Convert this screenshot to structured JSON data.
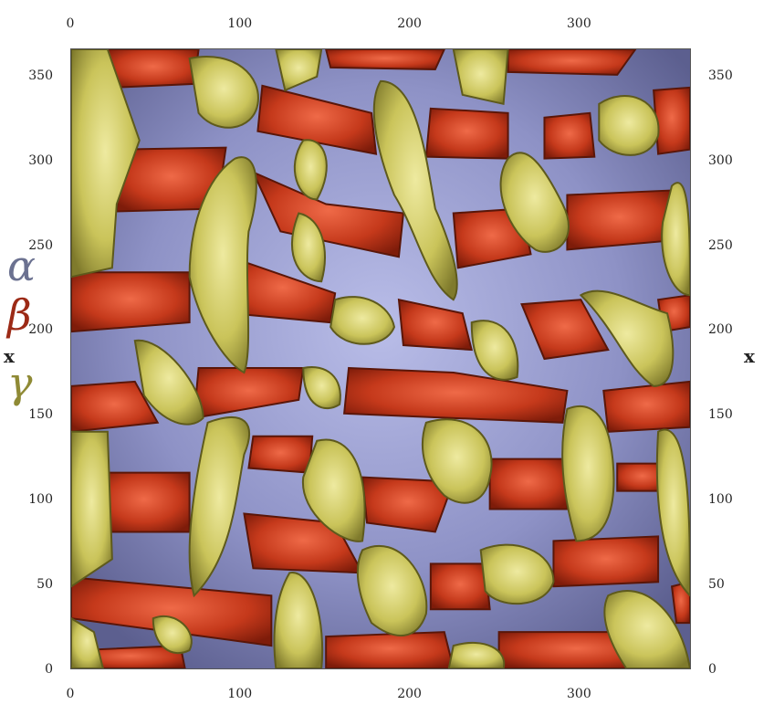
{
  "axes": {
    "x_ticks": [
      "0",
      "100",
      "200",
      "300"
    ],
    "y_ticks": [
      "0",
      "50",
      "100",
      "150",
      "200",
      "250",
      "300",
      "350"
    ],
    "xlabel": "x",
    "ylabel": "x",
    "xlim": [
      0,
      366
    ],
    "ylim": [
      0,
      366
    ]
  },
  "legend": {
    "items": [
      {
        "symbol": "α",
        "color": "#6b7190"
      },
      {
        "symbol": "β",
        "color": "#9c2a16"
      },
      {
        "symbol": "γ",
        "color": "#8f8a35"
      }
    ]
  },
  "phase_colors": {
    "alpha": "#8f92c6",
    "beta": "#c33a1d",
    "gamma": "#c9c45b"
  }
}
